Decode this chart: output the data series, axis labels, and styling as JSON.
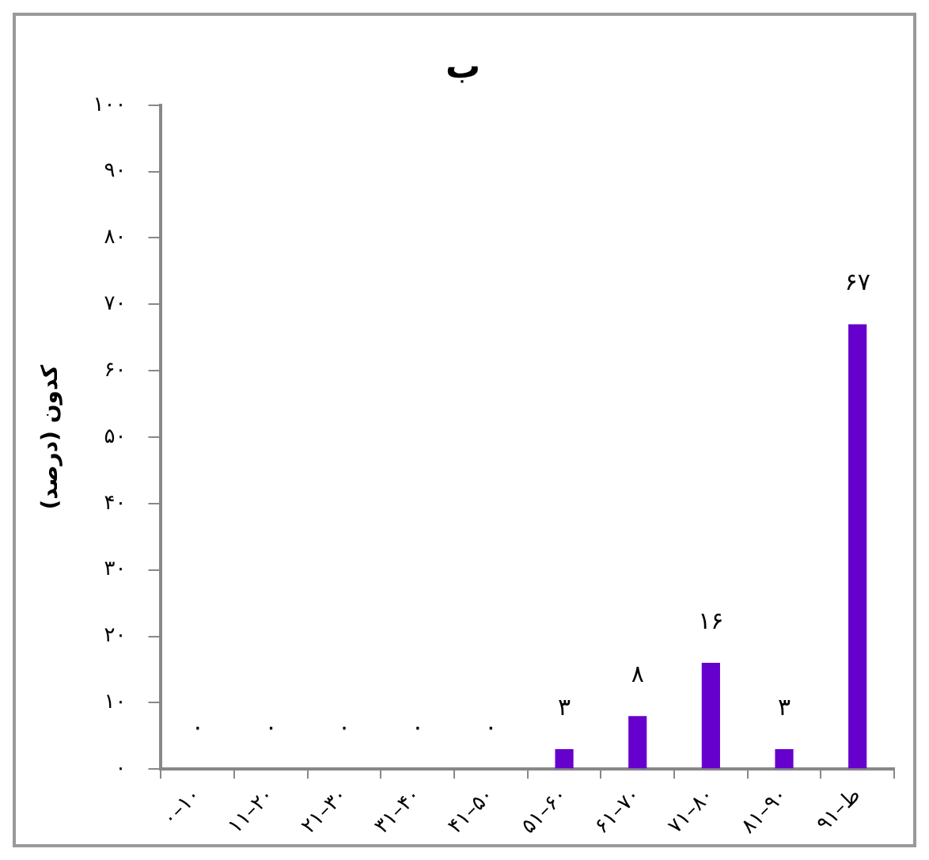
{
  "chart_data": {
    "type": "bar",
    "title": "ب",
    "ylabel": "کدون (درصد)",
    "categories": [
      "۰–۱۰",
      "۱۱–۲۰",
      "۲۱–۳۰",
      "۳۱–۴۰",
      "۴۱–۵۰",
      "۵۱–۶۰",
      "۶۱–۷۰",
      "۷۱–۸۰",
      "۸۱–۹۰",
      "۹۱–ط"
    ],
    "values": [
      0,
      0,
      0,
      0,
      0,
      3,
      8,
      16,
      3,
      67
    ],
    "value_labels": [
      "۰",
      "۰",
      "۰",
      "۰",
      "۰",
      "۳",
      "۸",
      "۱۶",
      "۳",
      "۶۷"
    ],
    "color": "#6600cc",
    "ylim": [
      0,
      100
    ],
    "yticks": [
      {
        "value": 0,
        "label": "۰"
      },
      {
        "value": 10,
        "label": "۱۰"
      },
      {
        "value": 20,
        "label": "۲۰"
      },
      {
        "value": 30,
        "label": "۳۰"
      },
      {
        "value": 40,
        "label": "۴۰"
      },
      {
        "value": 50,
        "label": "۵۰"
      },
      {
        "value": 60,
        "label": "۶۰"
      },
      {
        "value": 70,
        "label": "۷۰"
      },
      {
        "value": 80,
        "label": "۸۰"
      },
      {
        "value": 90,
        "label": "۹۰"
      },
      {
        "value": 100,
        "label": "۱۰۰"
      }
    ],
    "grid": false,
    "legend": false
  }
}
